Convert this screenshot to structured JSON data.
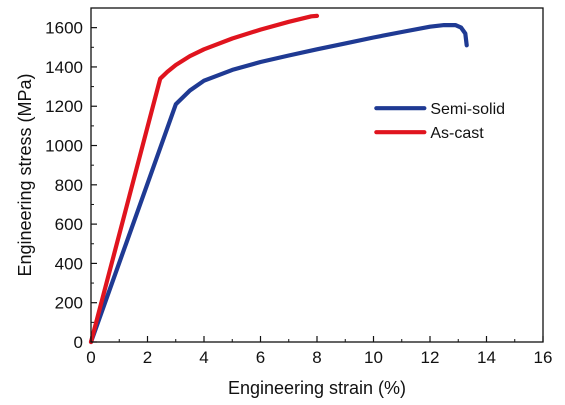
{
  "chart_data": {
    "type": "line",
    "title": "",
    "xlabel": "Engineering strain  (%)",
    "ylabel": "Engineering stress (MPa)",
    "xlim": [
      0,
      16
    ],
    "ylim": [
      0,
      1700
    ],
    "x_ticks": [
      0,
      2,
      4,
      6,
      8,
      10,
      12,
      14,
      16
    ],
    "y_ticks": [
      0,
      200,
      400,
      600,
      800,
      1000,
      1200,
      1400,
      1600
    ],
    "grid": false,
    "legend_position": "upper-right-inside",
    "series": [
      {
        "name": "Semi-solid",
        "color": "#1f3a93",
        "points": [
          [
            0,
            0
          ],
          [
            3.0,
            1210
          ],
          [
            3.5,
            1280
          ],
          [
            4.0,
            1330
          ],
          [
            5.0,
            1385
          ],
          [
            6.0,
            1425
          ],
          [
            7.0,
            1458
          ],
          [
            8.0,
            1490
          ],
          [
            9.0,
            1520
          ],
          [
            10.0,
            1550
          ],
          [
            11.0,
            1578
          ],
          [
            12.0,
            1605
          ],
          [
            12.5,
            1613
          ],
          [
            12.9,
            1613
          ],
          [
            13.1,
            1600
          ],
          [
            13.25,
            1570
          ],
          [
            13.3,
            1510
          ]
        ]
      },
      {
        "name": "As-cast",
        "color": "#e0141e",
        "points": [
          [
            0,
            0
          ],
          [
            2.45,
            1340
          ],
          [
            2.7,
            1375
          ],
          [
            3.0,
            1410
          ],
          [
            3.5,
            1455
          ],
          [
            4.0,
            1490
          ],
          [
            5.0,
            1545
          ],
          [
            6.0,
            1590
          ],
          [
            7.0,
            1630
          ],
          [
            7.8,
            1658
          ],
          [
            8.0,
            1660
          ]
        ]
      }
    ]
  }
}
